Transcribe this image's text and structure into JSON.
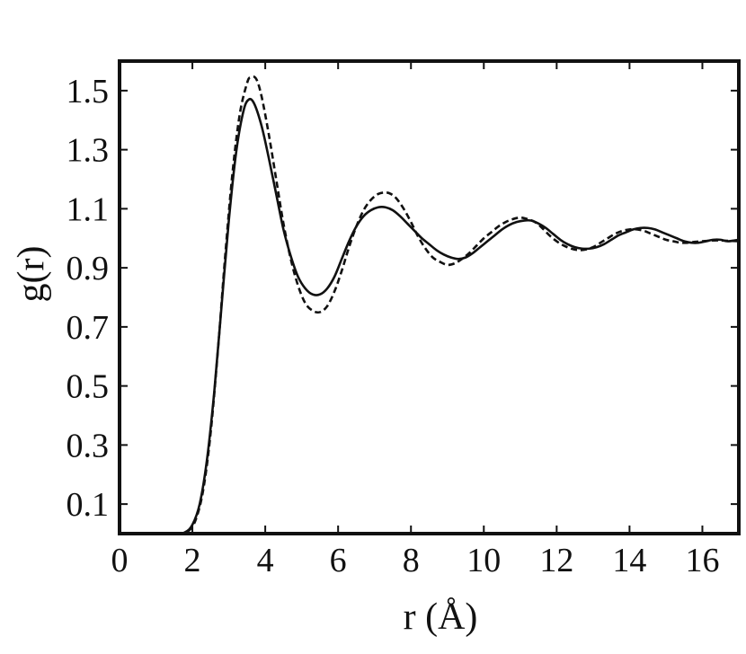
{
  "chart_data": {
    "type": "line",
    "xlabel": "r (Å)",
    "ylabel": "g(r)",
    "xlim": [
      0,
      17
    ],
    "ylim": [
      0.0,
      1.6
    ],
    "x_ticks": [
      0,
      2,
      4,
      6,
      8,
      10,
      12,
      14,
      16
    ],
    "y_ticks": [
      0.1,
      0.3,
      0.5,
      0.7,
      0.9,
      1.1,
      1.3,
      1.5
    ],
    "grid": false,
    "legend": "none",
    "series": [
      {
        "style": "solid",
        "color": "#111111",
        "x": [
          0,
          1.5,
          1.8,
          2.0,
          2.2,
          2.4,
          2.6,
          2.8,
          3.0,
          3.2,
          3.4,
          3.55,
          3.7,
          3.9,
          4.1,
          4.3,
          4.5,
          4.7,
          4.9,
          5.1,
          5.3,
          5.5,
          5.7,
          5.9,
          6.1,
          6.3,
          6.5,
          6.7,
          6.9,
          7.1,
          7.3,
          7.5,
          7.7,
          7.9,
          8.1,
          8.3,
          8.5,
          8.7,
          8.9,
          9.1,
          9.3,
          9.5,
          9.7,
          9.9,
          10.1,
          10.3,
          10.5,
          10.7,
          10.9,
          11.1,
          11.3,
          11.5,
          11.7,
          11.9,
          12.1,
          12.3,
          12.5,
          12.7,
          12.9,
          13.1,
          13.3,
          13.5,
          13.7,
          13.9,
          14.1,
          14.3,
          14.5,
          14.7,
          14.9,
          15.1,
          15.3,
          15.5,
          15.7,
          15.9,
          16.1,
          16.3,
          16.5,
          16.7,
          17.0
        ],
        "y": [
          0.0,
          0.0,
          0.005,
          0.03,
          0.1,
          0.25,
          0.48,
          0.77,
          1.06,
          1.29,
          1.43,
          1.47,
          1.455,
          1.38,
          1.27,
          1.15,
          1.03,
          0.94,
          0.87,
          0.83,
          0.81,
          0.81,
          0.83,
          0.87,
          0.93,
          0.99,
          1.04,
          1.075,
          1.095,
          1.105,
          1.105,
          1.095,
          1.075,
          1.05,
          1.025,
          1.0,
          0.98,
          0.96,
          0.945,
          0.935,
          0.93,
          0.935,
          0.95,
          0.97,
          0.99,
          1.01,
          1.03,
          1.045,
          1.055,
          1.06,
          1.06,
          1.05,
          1.035,
          1.015,
          0.995,
          0.98,
          0.97,
          0.965,
          0.965,
          0.97,
          0.98,
          0.995,
          1.01,
          1.02,
          1.03,
          1.035,
          1.035,
          1.03,
          1.02,
          1.01,
          1.0,
          0.99,
          0.985,
          0.985,
          0.99,
          0.995,
          0.995,
          0.99,
          0.995
        ]
      },
      {
        "style": "dashed",
        "color": "#111111",
        "x": [
          0,
          1.6,
          1.9,
          2.1,
          2.3,
          2.5,
          2.7,
          2.9,
          3.1,
          3.3,
          3.5,
          3.6,
          3.75,
          3.9,
          4.1,
          4.3,
          4.5,
          4.7,
          4.9,
          5.1,
          5.3,
          5.5,
          5.7,
          5.9,
          6.1,
          6.3,
          6.5,
          6.7,
          6.9,
          7.1,
          7.3,
          7.45,
          7.6,
          7.8,
          8.0,
          8.2,
          8.4,
          8.6,
          8.8,
          9.0,
          9.2,
          9.4,
          9.6,
          9.8,
          10.0,
          10.2,
          10.4,
          10.6,
          10.8,
          11.0,
          11.2,
          11.4,
          11.6,
          11.8,
          12.0,
          12.2,
          12.4,
          12.6,
          12.8,
          13.0,
          13.2,
          13.4,
          13.6,
          13.8,
          14.0,
          14.2,
          14.4,
          14.6,
          14.8,
          15.0,
          15.2,
          15.4,
          15.6,
          15.8,
          16.0,
          16.2,
          16.4,
          16.6,
          17.0
        ],
        "y": [
          0.0,
          0.0,
          0.01,
          0.05,
          0.15,
          0.34,
          0.62,
          0.94,
          1.22,
          1.42,
          1.525,
          1.545,
          1.54,
          1.48,
          1.35,
          1.2,
          1.05,
          0.93,
          0.84,
          0.78,
          0.755,
          0.75,
          0.77,
          0.82,
          0.89,
          0.97,
          1.04,
          1.095,
          1.13,
          1.15,
          1.155,
          1.15,
          1.135,
          1.1,
          1.055,
          1.005,
          0.965,
          0.935,
          0.92,
          0.91,
          0.915,
          0.93,
          0.95,
          0.975,
          1.0,
          1.02,
          1.04,
          1.055,
          1.065,
          1.07,
          1.065,
          1.055,
          1.035,
          1.01,
          0.99,
          0.975,
          0.965,
          0.96,
          0.962,
          0.97,
          0.985,
          1.0,
          1.015,
          1.025,
          1.03,
          1.03,
          1.025,
          1.015,
          1.005,
          0.995,
          0.99,
          0.985,
          0.985,
          0.988,
          0.99,
          0.992,
          0.993,
          0.992,
          0.99
        ]
      }
    ]
  }
}
